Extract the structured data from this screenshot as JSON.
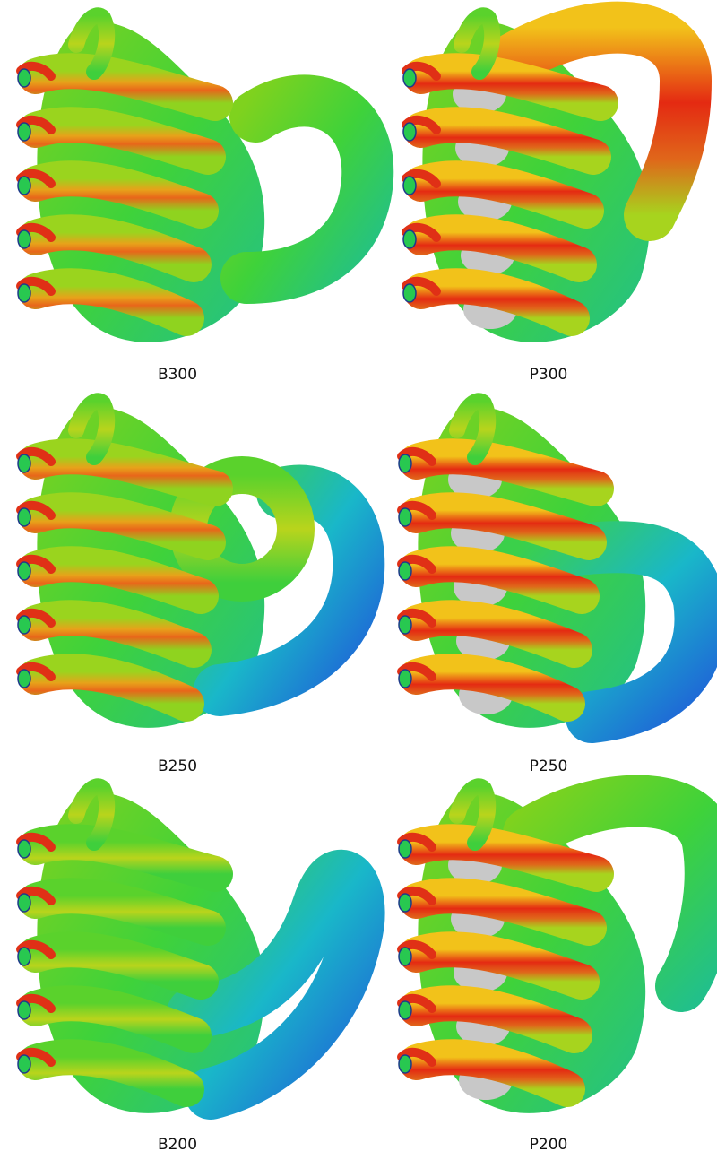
{
  "panels": [
    {
      "label": "B300"
    },
    {
      "label": "P300"
    },
    {
      "label": "B250"
    },
    {
      "label": "P250"
    },
    {
      "label": "B200"
    },
    {
      "label": "P200"
    }
  ]
}
